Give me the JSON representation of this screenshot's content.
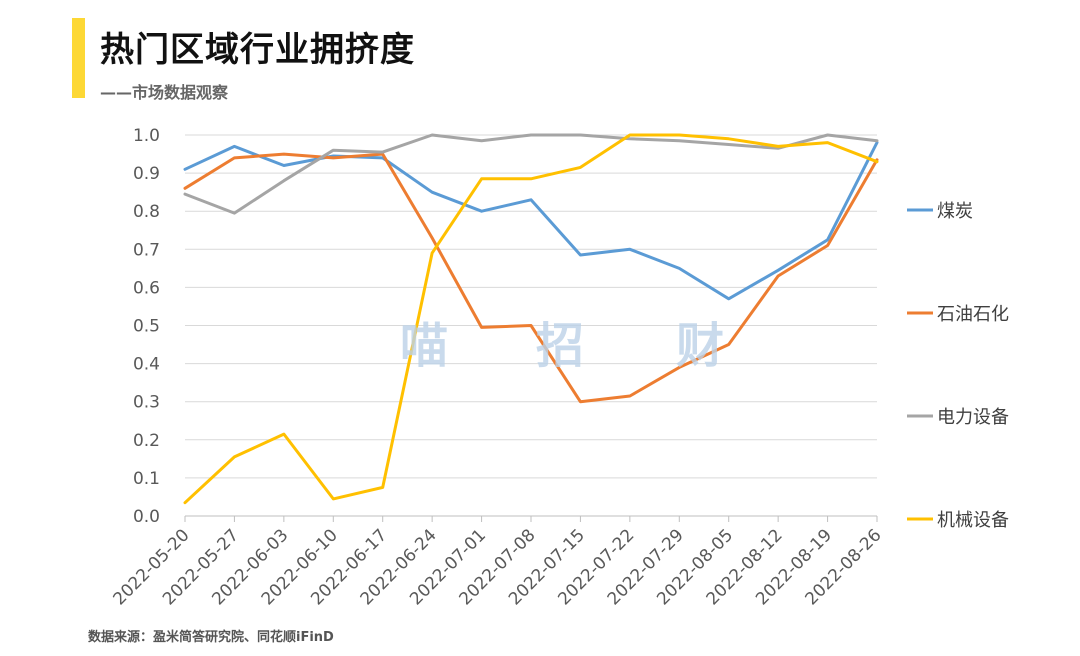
{
  "header": {
    "title": "热门区域行业拥挤度",
    "subtitle": "——市场数据观察"
  },
  "watermark": [
    "喵",
    "招",
    "财"
  ],
  "footer": {
    "source": "数据来源：盈米简答研究院、同花顺iFinD"
  },
  "colors": {
    "accent": "#fdd835"
  },
  "chart_data": {
    "type": "line",
    "categories": [
      "2022-05-20",
      "2022-05-27",
      "2022-06-03",
      "2022-06-10",
      "2022-06-17",
      "2022-06-24",
      "2022-07-01",
      "2022-07-08",
      "2022-07-15",
      "2022-07-22",
      "2022-07-29",
      "2022-08-05",
      "2022-08-12",
      "2022-08-19",
      "2022-08-26"
    ],
    "ylim": [
      0,
      1.0
    ],
    "yticks": [
      "0.0",
      "0.1",
      "0.2",
      "0.3",
      "0.4",
      "0.5",
      "0.6",
      "0.7",
      "0.8",
      "0.9",
      "1.0"
    ],
    "grid": true,
    "legend_position": "right",
    "series": [
      {
        "name": "煤炭",
        "color": "#5b9bd5",
        "values": [
          0.91,
          0.97,
          0.92,
          0.945,
          0.94,
          0.85,
          0.8,
          0.83,
          0.685,
          0.7,
          0.65,
          0.57,
          0.645,
          0.725,
          0.98
        ]
      },
      {
        "name": "石油石化",
        "color": "#ed7d31",
        "values": [
          0.86,
          0.94,
          0.95,
          0.94,
          0.95,
          0.73,
          0.495,
          0.5,
          0.3,
          0.315,
          0.39,
          0.45,
          0.63,
          0.71,
          0.935
        ]
      },
      {
        "name": "电力设备",
        "color": "#a5a5a5",
        "values": [
          0.845,
          0.795,
          0.88,
          0.96,
          0.955,
          1.0,
          0.985,
          1.0,
          1.0,
          0.99,
          0.985,
          0.975,
          0.965,
          1.0,
          0.985
        ]
      },
      {
        "name": "机械设备",
        "color": "#ffc000",
        "values": [
          0.035,
          0.155,
          0.215,
          0.045,
          0.075,
          0.69,
          0.885,
          0.885,
          0.915,
          1.0,
          1.0,
          0.99,
          0.97,
          0.98,
          0.93
        ]
      }
    ]
  }
}
